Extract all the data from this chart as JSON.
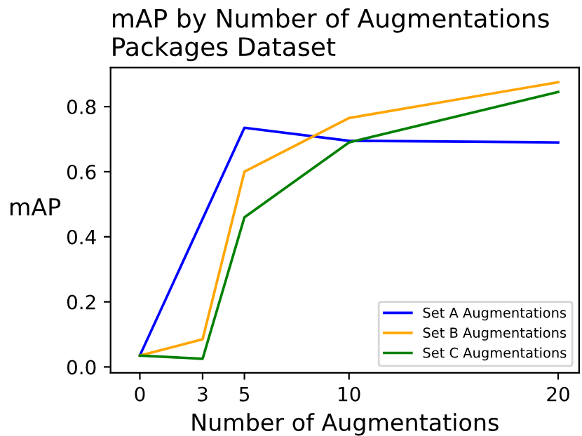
{
  "chart_data": {
    "type": "line",
    "title": "mAP by Number of Augmentations\nPackages Dataset",
    "xlabel": "Number of Augmentations",
    "ylabel": "mAP",
    "x": [
      0,
      3,
      5,
      10,
      20
    ],
    "series": [
      {
        "name": "Set A Augmentations",
        "color": "#0000ff",
        "x": [
          0,
          5,
          10,
          20
        ],
        "values": [
          0.035,
          0.735,
          0.695,
          0.69
        ]
      },
      {
        "name": "Set B Augmentations",
        "color": "#ffa500",
        "values": [
          0.035,
          0.085,
          0.6,
          0.765,
          0.875
        ]
      },
      {
        "name": "Set C Augmentations",
        "color": "#008000",
        "values": [
          0.035,
          0.025,
          0.46,
          0.69,
          0.845
        ]
      }
    ],
    "xlim": [
      -1.4,
      21
    ],
    "xticks": [
      0,
      3,
      5,
      10,
      20
    ],
    "ylim": [
      -0.018,
      0.92
    ],
    "yticks": [
      {
        "value": 0,
        "label": "0.0"
      },
      0.2,
      0.4,
      0.6,
      0.8
    ],
    "legend": "bottom right",
    "grid": false,
    "marker": "none",
    "line_style": "solid"
  }
}
